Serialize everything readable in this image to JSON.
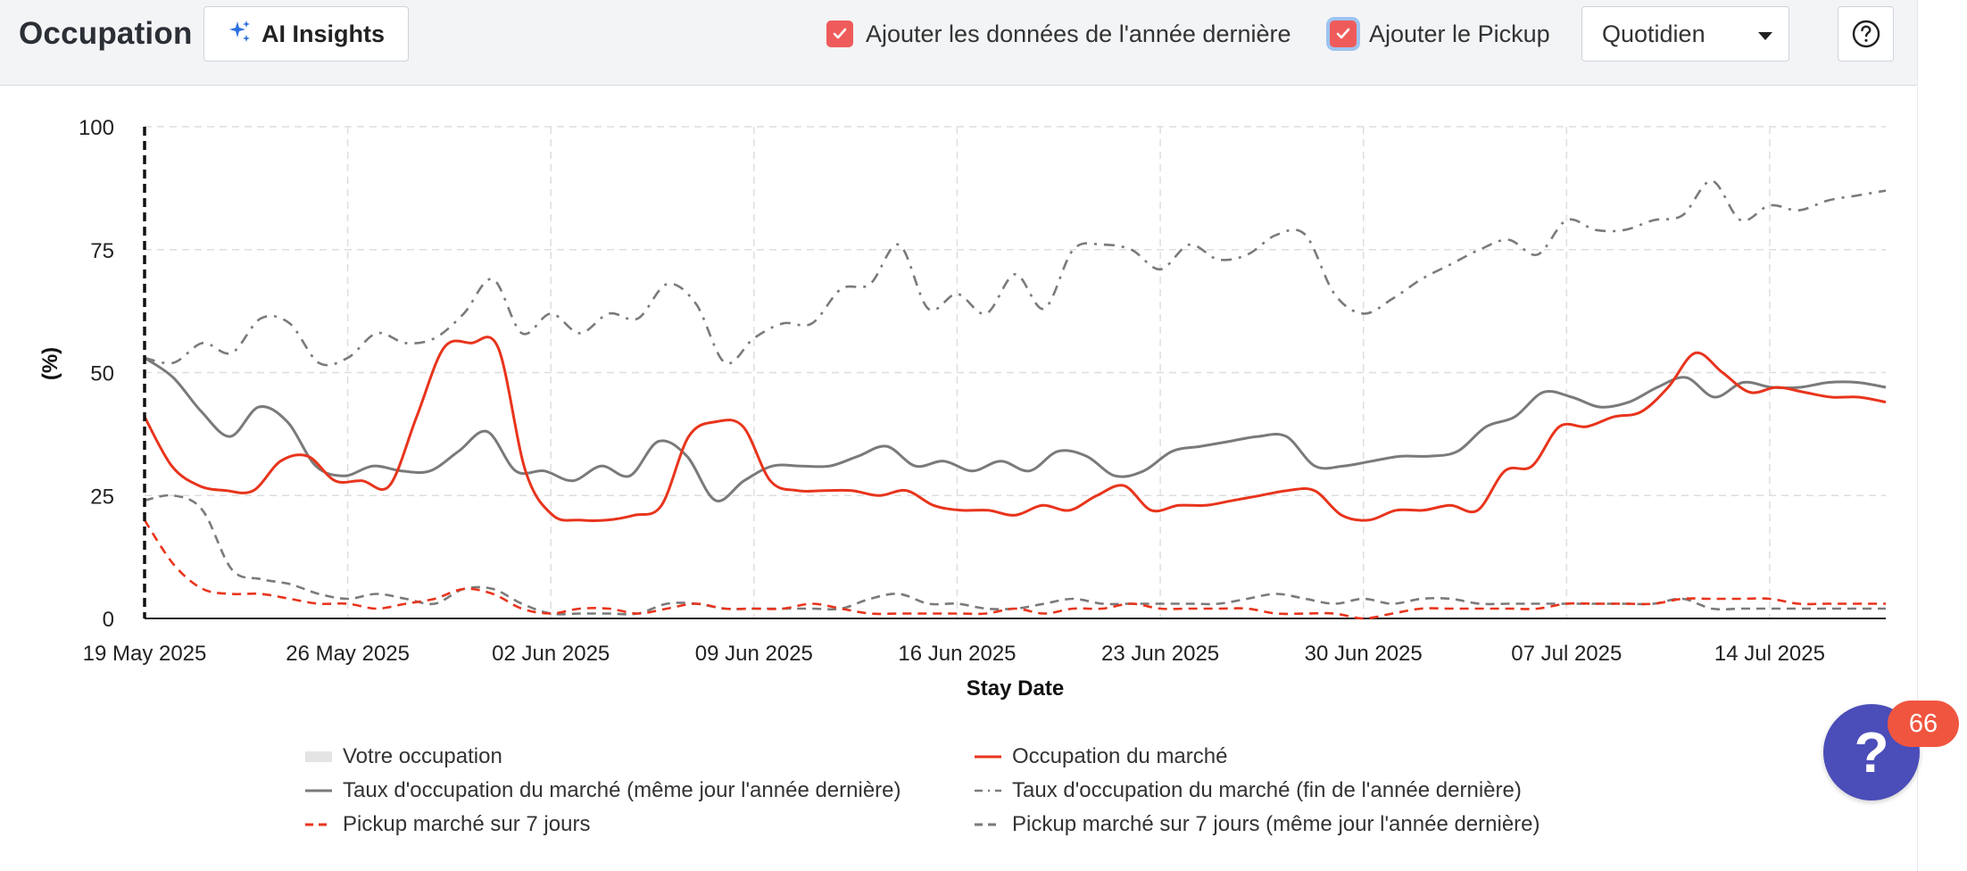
{
  "header": {
    "title": "Occupation",
    "ai_button_label": "AI Insights",
    "checkbox_last_year_label": "Ajouter les données de l'année dernière",
    "checkbox_pickup_label": "Ajouter le Pickup",
    "checkbox_last_year_checked": true,
    "checkbox_pickup_checked": true,
    "granularity_select_value": "Quotidien",
    "help_icon": "question-circle-icon",
    "ai_icon": "sparkles-icon"
  },
  "colors": {
    "accent_red": "#e8341c",
    "gray_series": "#7a7a7a",
    "checkbox_red": "#ef5b5b",
    "fab_purple": "#4b4db8",
    "badge_orange": "#f0553f"
  },
  "fab": {
    "icon": "question-mark-icon",
    "badge_count": "66"
  },
  "chart_data": {
    "type": "line",
    "xlabel": "Stay Date",
    "ylabel": "(%)",
    "ylim": [
      0,
      100
    ],
    "yticks": [
      "0",
      "25",
      "50",
      "75",
      "100"
    ],
    "xticks": [
      "19 May 2025",
      "26 May 2025",
      "02 Jun 2025",
      "09 Jun 2025",
      "16 Jun 2025",
      "23 Jun 2025",
      "30 Jun 2025",
      "07 Jul 2025",
      "14 Jul 2025"
    ],
    "x_start_date": "2025-05-19",
    "x_end_date": "2025-07-18",
    "today_marker_date": "2025-05-19",
    "grid": true,
    "legend_position": "bottom",
    "legend": [
      "Votre occupation",
      "Occupation du marché",
      "Taux d'occupation du marché (même jour l'année dernière)",
      "Taux d'occupation du marché (fin de l'année dernière)",
      "Pickup marché sur 7 jours",
      "Pickup marché sur 7 jours (même jour l'année dernière)"
    ],
    "series": [
      {
        "name": "Occupation du marché",
        "style": "solid",
        "color": "#e8341c",
        "values": [
          41,
          31,
          27,
          26,
          26,
          32,
          33,
          28,
          28,
          27,
          41,
          55,
          56,
          55,
          30,
          21,
          20,
          20,
          21,
          23,
          37,
          40,
          39,
          28,
          26,
          26,
          26,
          25,
          26,
          23,
          22,
          22,
          21,
          23,
          22,
          25,
          27,
          22,
          23,
          23,
          24,
          25,
          26,
          26,
          21,
          20,
          22,
          22,
          23,
          22,
          30,
          31,
          39,
          39,
          41,
          42,
          47,
          54,
          50,
          46,
          47,
          46,
          45,
          45,
          44
        ]
      },
      {
        "name": "Taux d'occupation du marché (même jour l'année dernière)",
        "style": "solid",
        "color": "#7a7a7a",
        "values": [
          53,
          49,
          42,
          37,
          43,
          40,
          31,
          29,
          31,
          30,
          30,
          34,
          38,
          30,
          30,
          28,
          31,
          29,
          36,
          33,
          24,
          28,
          31,
          31,
          31,
          33,
          35,
          31,
          32,
          30,
          32,
          30,
          34,
          33,
          29,
          30,
          34,
          35,
          36,
          37,
          37,
          31,
          31,
          32,
          33,
          33,
          34,
          39,
          41,
          46,
          45,
          43,
          44,
          47,
          49,
          45,
          48,
          47,
          47,
          48,
          48,
          47
        ]
      },
      {
        "name": "Taux d'occupation du marché (fin de l'année dernière)",
        "style": "dashdot",
        "color": "#7a7a7a",
        "values": [
          53,
          52,
          56,
          54,
          61,
          60,
          52,
          53,
          58,
          56,
          57,
          62,
          69,
          58,
          62,
          58,
          62,
          61,
          68,
          64,
          52,
          57,
          60,
          60,
          67,
          68,
          76,
          63,
          66,
          62,
          70,
          63,
          75,
          76,
          75,
          71,
          76,
          73,
          74,
          78,
          78,
          66,
          62,
          65,
          69,
          72,
          75,
          77,
          74,
          81,
          79,
          79,
          81,
          82,
          89,
          81,
          84,
          83,
          85,
          86,
          87
        ]
      },
      {
        "name": "Pickup marché sur 7 jours",
        "style": "dashed",
        "color": "#e8341c",
        "values": [
          20,
          11,
          6,
          5,
          5,
          4,
          3,
          3,
          2,
          3,
          4,
          6,
          5,
          2,
          1,
          2,
          2,
          1,
          2,
          3,
          2,
          2,
          2,
          3,
          2,
          1,
          1,
          1,
          1,
          1,
          2,
          1,
          2,
          2,
          3,
          2,
          2,
          2,
          2,
          1,
          1,
          1,
          0,
          1,
          2,
          2,
          2,
          2,
          2,
          3,
          3,
          3,
          3,
          4,
          4,
          4,
          4,
          3,
          3,
          3,
          3
        ]
      },
      {
        "name": "Pickup marché sur 7 jours (même jour l'année dernière)",
        "style": "dashed",
        "color": "#7a7a7a",
        "values": [
          24,
          25,
          22,
          10,
          8,
          7,
          5,
          4,
          5,
          4,
          3,
          6,
          6,
          3,
          1,
          1,
          1,
          1,
          3,
          3,
          2,
          2,
          2,
          2,
          2,
          4,
          5,
          3,
          3,
          2,
          2,
          3,
          4,
          3,
          3,
          3,
          3,
          3,
          4,
          5,
          4,
          3,
          4,
          3,
          4,
          4,
          3,
          3,
          3,
          3,
          3,
          3,
          3,
          4,
          2,
          2,
          2,
          2,
          2,
          2,
          2
        ]
      }
    ]
  }
}
